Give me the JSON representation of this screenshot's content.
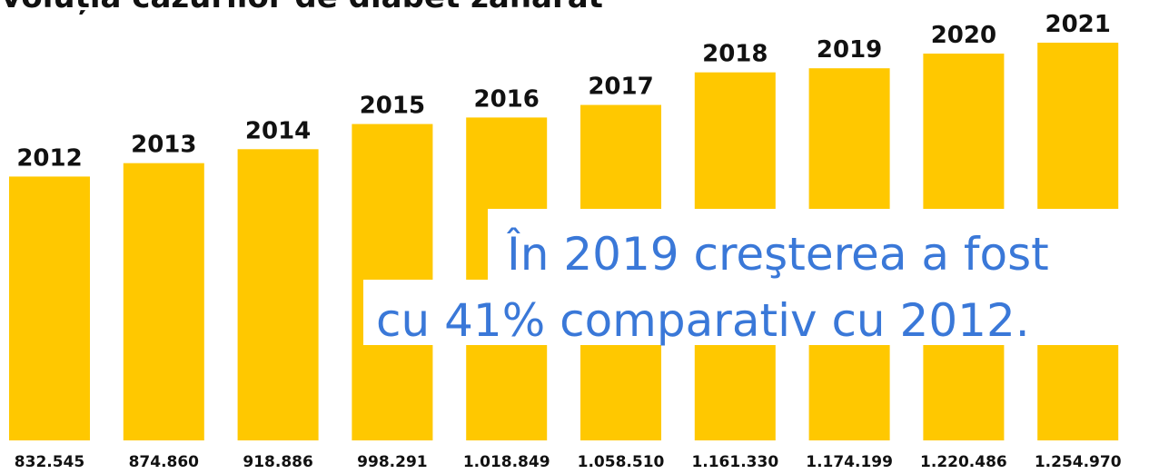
{
  "chart_data": {
    "type": "bar",
    "title": "Evoluția cazurilor de diabet zaharat",
    "categories": [
      "2012",
      "2013",
      "2014",
      "2015",
      "2016",
      "2017",
      "2018",
      "2019",
      "2020",
      "2021"
    ],
    "values": [
      832545,
      874860,
      918886,
      998291,
      1018849,
      1058510,
      1161330,
      1174199,
      1220486,
      1254970
    ],
    "value_labels": [
      "832.545",
      "874.860",
      "918.886",
      "998.291",
      "1.018.849",
      "1.058.510",
      "1.161.330",
      "1.174.199",
      "1.220.486",
      "1.254.970"
    ],
    "color": "#ffc800",
    "annotations": [
      "În 2019 creşterea a fost",
      "cu 41% comparativ cu 2012."
    ]
  }
}
